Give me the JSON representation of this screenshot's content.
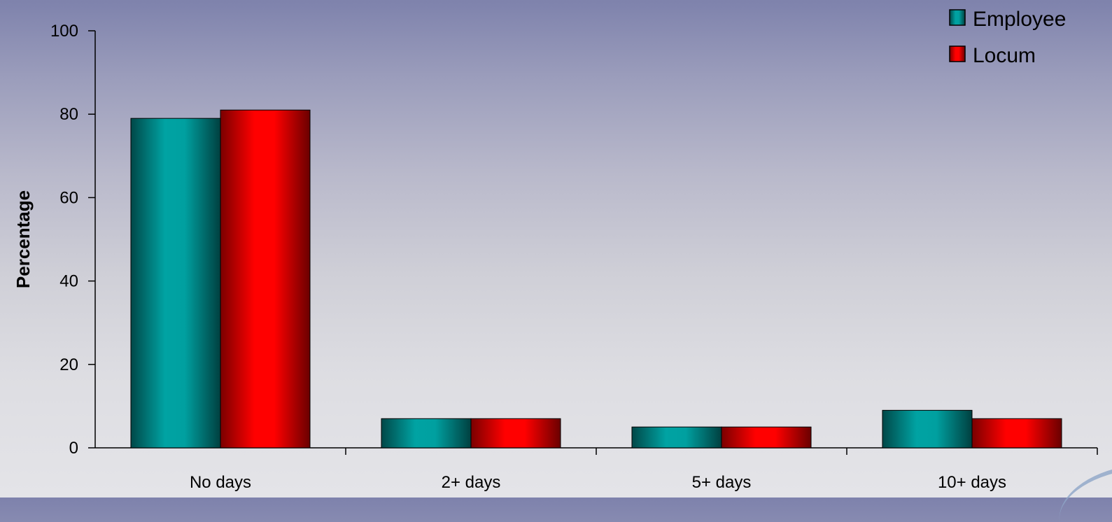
{
  "chart_data": {
    "type": "bar",
    "categories": [
      "No days",
      "2+ days",
      "5+ days",
      "10+ days"
    ],
    "series": [
      {
        "name": "Employee",
        "values": [
          79,
          7,
          5,
          9
        ],
        "color": "#009999"
      },
      {
        "name": "Locum",
        "values": [
          81,
          7,
          5,
          7
        ],
        "color": "#ff0000"
      }
    ],
    "ylabel": "Percentage",
    "xlabel": "",
    "ylim": [
      0,
      100
    ],
    "yticks": [
      "0",
      "20",
      "40",
      "60",
      "80",
      "100"
    ],
    "grid": false,
    "legend_position": "top-right"
  }
}
